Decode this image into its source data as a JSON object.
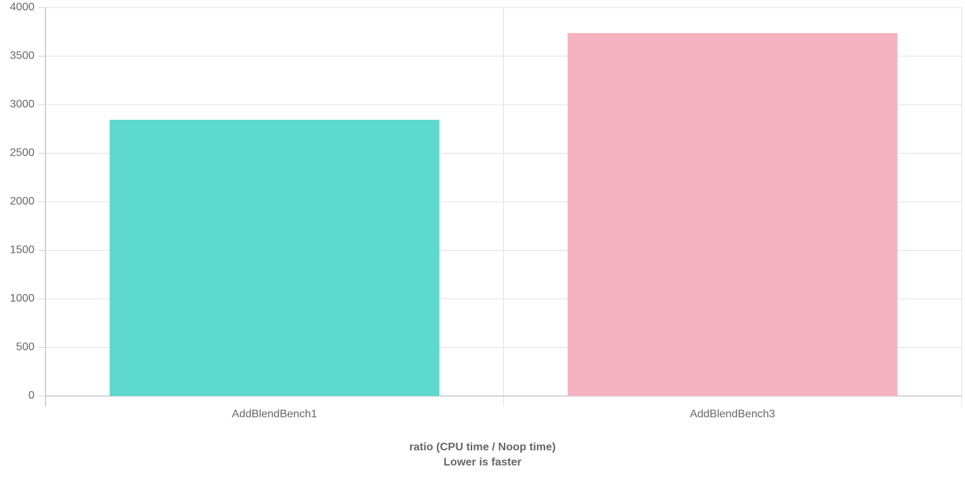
{
  "chart_data": {
    "type": "bar",
    "categories": [
      "AddBlendBench1",
      "AddBlendBench3"
    ],
    "values": [
      2844,
      3738
    ],
    "colors": [
      "#5ed9cf",
      "#f5b3c2"
    ],
    "ylim": [
      0,
      4000
    ],
    "yticks": [
      0,
      500,
      1000,
      1500,
      2000,
      2500,
      3000,
      3500,
      4000
    ],
    "grid": true,
    "xlabel": [
      "ratio (CPU time / Noop time)",
      "Lower is faster"
    ]
  }
}
